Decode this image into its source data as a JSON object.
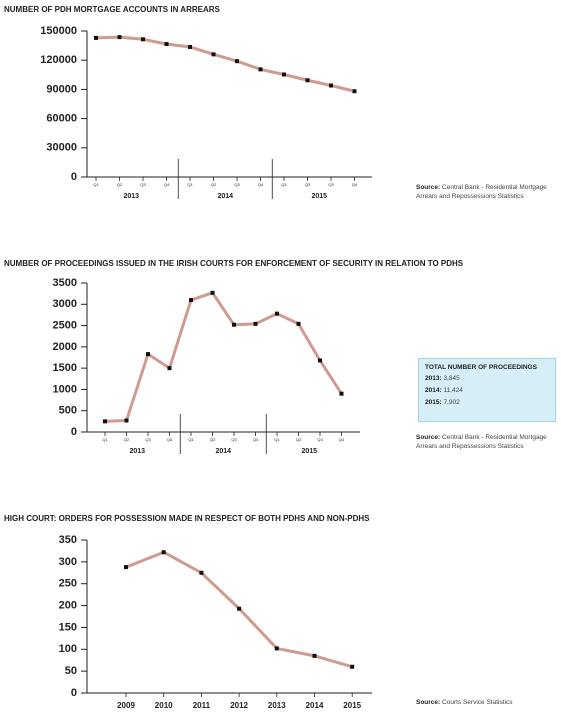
{
  "chart_data": [
    {
      "type": "line",
      "title": "NUMBER OF PDH MORTGAGE ACCOUNTS IN ARREARS",
      "categories": [
        "Q1",
        "Q2",
        "Q3",
        "Q4",
        "Q1",
        "Q2",
        "Q3",
        "Q4",
        "Q1",
        "Q2",
        "Q3",
        "Q4"
      ],
      "category_groups": [
        "2013",
        "2014",
        "2015"
      ],
      "values": [
        142900,
        143700,
        141500,
        136600,
        133600,
        126000,
        119000,
        110600,
        105300,
        99400,
        94000,
        88100
      ],
      "color": "#d09a8e",
      "marker_color": "#111111",
      "ylim": [
        0,
        150000
      ],
      "yticks": [
        0,
        30000,
        60000,
        90000,
        120000,
        150000
      ],
      "source_label": "Source:",
      "source": "Central Bank - Residential Mortgage Arrears and Repossessions Statistics"
    },
    {
      "type": "line",
      "title": "NUMBER OF PROCEEDINGS ISSUED IN THE IRISH COURTS FOR ENFORCEMENT OF SECURITY IN RELATION TO PDHS",
      "categories": [
        "Q1",
        "Q2",
        "Q3",
        "Q4",
        "Q1",
        "Q2",
        "Q3",
        "Q4",
        "Q1",
        "Q2",
        "Q3",
        "Q4"
      ],
      "category_groups": [
        "2013",
        "2014",
        "2015"
      ],
      "values": [
        250,
        270,
        1830,
        1500,
        3100,
        3270,
        2520,
        2540,
        2780,
        2540,
        1680,
        900
      ],
      "color": "#d09a8e",
      "marker_color": "#111111",
      "ylim": [
        0,
        3500
      ],
      "yticks": [
        0,
        500,
        1000,
        1500,
        2000,
        2500,
        3000,
        3500
      ],
      "total_box": {
        "title": "TOTAL NUMBER OF PROCEEDINGS",
        "items": [
          {
            "label": "2013:",
            "value": "3,845"
          },
          {
            "label": "2014:",
            "value": "11,424"
          },
          {
            "label": "2015:",
            "value": "7,902"
          }
        ]
      },
      "source_label": "Source:",
      "source": "Central Bank - Residential Mortgage Arrears and Repossessions Statistics"
    },
    {
      "type": "line",
      "title": "HIGH COURT: ORDERS FOR POSSESSION MADE IN RESPECT OF BOTH PDHS AND NON-PDHS",
      "categories": [
        "2009",
        "2010",
        "2011",
        "2012",
        "2013",
        "2014",
        "2015"
      ],
      "values": [
        288,
        322,
        275,
        193,
        102,
        85,
        60
      ],
      "color": "#d09a8e",
      "marker_color": "#111111",
      "ylim": [
        0,
        350
      ],
      "yticks": [
        0,
        50,
        100,
        150,
        200,
        250,
        300,
        350
      ],
      "source_label": "Source:",
      "source": "Courts Service Statistics"
    }
  ]
}
